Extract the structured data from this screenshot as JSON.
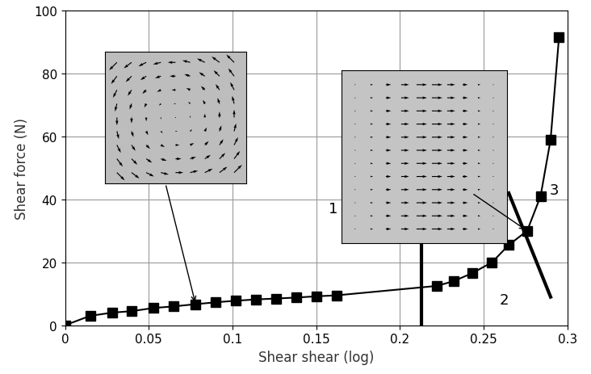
{
  "chart_data": {
    "type": "line",
    "x_label": "Shear shear (log)",
    "y_label": "Shear force (N)",
    "x": [
      0,
      0.015,
      0.028,
      0.04,
      0.053,
      0.065,
      0.078,
      0.09,
      0.102,
      0.114,
      0.126,
      0.138,
      0.15,
      0.162,
      0.222,
      0.232,
      0.243,
      0.255,
      0.265,
      0.276,
      0.284,
      0.29,
      0.295
    ],
    "values": [
      0,
      3,
      4,
      4.5,
      5.5,
      6,
      6.7,
      7.3,
      7.8,
      8.2,
      8.5,
      8.8,
      9.2,
      9.5,
      12.5,
      14,
      16.5,
      20,
      25.5,
      30,
      41,
      59,
      91.5
    ],
    "color": "#000000",
    "marker": "square",
    "line_style": "solid",
    "xlim": [
      0,
      0.3
    ],
    "xticks": [
      0,
      0.05,
      0.1,
      0.15,
      0.2,
      0.25,
      0.3
    ],
    "ylim": [
      0,
      100
    ],
    "yticks": [
      0,
      20,
      40,
      60,
      80,
      100
    ],
    "grid": true,
    "annotations": [
      {
        "text": "1",
        "x": 0.16,
        "y": 37
      },
      {
        "text": "2",
        "x": 0.262,
        "y": 8
      },
      {
        "text": "3",
        "x": 0.292,
        "y": 43
      }
    ],
    "boundaries": [
      {
        "x": [
          0.213,
          0.213
        ],
        "y": [
          0,
          46
        ]
      },
      {
        "x": [
          0.265,
          0.29
        ],
        "y": [
          42,
          9
        ]
      }
    ]
  }
}
